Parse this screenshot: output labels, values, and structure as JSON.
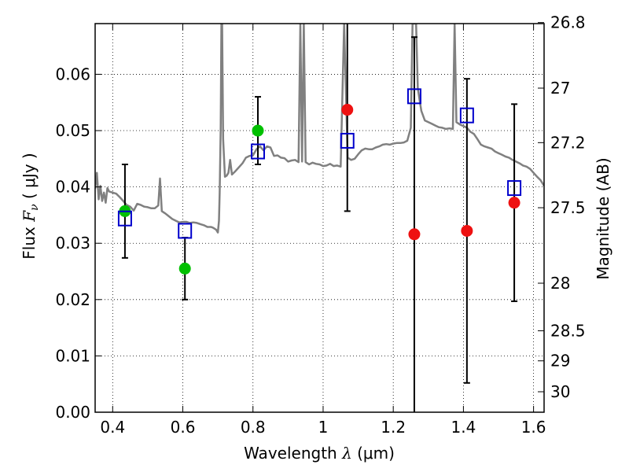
{
  "chart_data": {
    "type": "scatter",
    "xlabel": "Wavelength  λ (μm)",
    "xlabel_parts": {
      "main": "Wavelength  ",
      "symbol": "λ",
      "unit": " (μm)"
    },
    "ylabel": "Flux  Fν  ( μJy )",
    "ylabel_parts": {
      "main": "Flux  ",
      "symbol": "F",
      "sub": "ν",
      "unit": "  ( μJy )"
    },
    "y2label": "Magnitude (AB)",
    "xlim": [
      0.35,
      1.63
    ],
    "ylim": [
      0.0,
      0.069
    ],
    "x_ticks": [
      0.4,
      0.6,
      0.8,
      1.0,
      1.2,
      1.4,
      1.6
    ],
    "x_tick_labels": [
      "0.4",
      "0.6",
      "0.8",
      "1",
      "1.2",
      "1.4",
      "1.6"
    ],
    "y_ticks": [
      0.0,
      0.01,
      0.02,
      0.03,
      0.04,
      0.05,
      0.06
    ],
    "y_tick_labels": [
      "0.00",
      "0.01",
      "0.02",
      "0.03",
      "0.04",
      "0.05",
      "0.06"
    ],
    "y2_ticks": [
      26.8,
      27,
      27.2,
      27.5,
      28,
      28.5,
      29,
      30
    ],
    "y2_tick_labels": [
      "26.8",
      "27",
      "27.2",
      "27.5",
      "28",
      "28.5",
      "29",
      "30"
    ],
    "grid": true,
    "colors": {
      "sed": "#808080",
      "green": "#00c000",
      "red": "#ee1111",
      "model": "#0000cc",
      "error": "#000000"
    },
    "sed_model": {
      "x": [
        0.35,
        0.355,
        0.36,
        0.365,
        0.37,
        0.375,
        0.38,
        0.385,
        0.39,
        0.4,
        0.41,
        0.42,
        0.43,
        0.44,
        0.45,
        0.46,
        0.47,
        0.48,
        0.49,
        0.5,
        0.51,
        0.52,
        0.53,
        0.535,
        0.54,
        0.55,
        0.56,
        0.57,
        0.58,
        0.59,
        0.6,
        0.61,
        0.62,
        0.63,
        0.64,
        0.65,
        0.66,
        0.67,
        0.68,
        0.685,
        0.69,
        0.695,
        0.7,
        0.703,
        0.705,
        0.708,
        0.71,
        0.712,
        0.715,
        0.72,
        0.725,
        0.73,
        0.735,
        0.74,
        0.75,
        0.76,
        0.77,
        0.78,
        0.79,
        0.8,
        0.81,
        0.82,
        0.83,
        0.84,
        0.85,
        0.86,
        0.87,
        0.88,
        0.89,
        0.9,
        0.91,
        0.92,
        0.93,
        0.935,
        0.94,
        0.945,
        0.95,
        0.96,
        0.97,
        0.98,
        0.99,
        1.0,
        1.01,
        1.02,
        1.03,
        1.04,
        1.05,
        1.06,
        1.07,
        1.08,
        1.09,
        1.1,
        1.11,
        1.12,
        1.13,
        1.14,
        1.15,
        1.16,
        1.17,
        1.18,
        1.19,
        1.2,
        1.21,
        1.22,
        1.23,
        1.24,
        1.25,
        1.255,
        1.26,
        1.265,
        1.27,
        1.275,
        1.28,
        1.29,
        1.3,
        1.31,
        1.32,
        1.33,
        1.34,
        1.35,
        1.36,
        1.37,
        1.375,
        1.38,
        1.39,
        1.4,
        1.41,
        1.42,
        1.43,
        1.44,
        1.45,
        1.46,
        1.47,
        1.48,
        1.49,
        1.5,
        1.51,
        1.52,
        1.53,
        1.54,
        1.55,
        1.56,
        1.57,
        1.58,
        1.59,
        1.6,
        1.61,
        1.62,
        1.63
      ],
      "y": [
        0.0397,
        0.0425,
        0.0378,
        0.0402,
        0.0375,
        0.039,
        0.0372,
        0.0398,
        0.0392,
        0.039,
        0.0388,
        0.0382,
        0.0375,
        0.0368,
        0.0365,
        0.0358,
        0.037,
        0.0368,
        0.0365,
        0.0364,
        0.0362,
        0.0362,
        0.0367,
        0.0415,
        0.0357,
        0.0353,
        0.0348,
        0.0343,
        0.034,
        0.0337,
        0.0338,
        0.0338,
        0.0336,
        0.0337,
        0.0336,
        0.0334,
        0.0332,
        0.0329,
        0.0329,
        0.0328,
        0.0326,
        0.0324,
        0.0319,
        0.034,
        0.039,
        0.0505,
        0.069,
        0.069,
        0.0485,
        0.0418,
        0.042,
        0.0425,
        0.0448,
        0.0422,
        0.0428,
        0.0435,
        0.0442,
        0.0452,
        0.0455,
        0.0456,
        0.0467,
        0.0472,
        0.0465,
        0.0472,
        0.047,
        0.0455,
        0.0456,
        0.0452,
        0.0451,
        0.0445,
        0.0447,
        0.0448,
        0.0444,
        0.069,
        0.0445,
        0.069,
        0.0444,
        0.044,
        0.0443,
        0.0441,
        0.044,
        0.0437,
        0.0438,
        0.0441,
        0.0437,
        0.0438,
        0.0436,
        0.069,
        0.0452,
        0.0448,
        0.045,
        0.0458,
        0.0465,
        0.0468,
        0.0467,
        0.0467,
        0.047,
        0.0472,
        0.0475,
        0.0476,
        0.0475,
        0.0477,
        0.0478,
        0.0478,
        0.0479,
        0.0482,
        0.0505,
        0.069,
        0.069,
        0.069,
        0.0575,
        0.0555,
        0.0535,
        0.0518,
        0.0515,
        0.0512,
        0.0509,
        0.0506,
        0.0505,
        0.0503,
        0.0504,
        0.0503,
        0.069,
        0.0515,
        0.0511,
        0.0508,
        0.0505,
        0.0498,
        0.0494,
        0.0485,
        0.0475,
        0.0472,
        0.047,
        0.0468,
        0.0463,
        0.046,
        0.0457,
        0.0454,
        0.0452,
        0.0448,
        0.0445,
        0.0442,
        0.0438,
        0.0436,
        0.0432,
        0.0425,
        0.0418,
        0.0412,
        0.0402
      ]
    },
    "series": [
      {
        "marker": "circle",
        "color": "green",
        "points": [
          {
            "x": 0.435,
            "y": 0.0357,
            "err_low": 0.0083,
            "err_high": 0.0083
          },
          {
            "x": 0.606,
            "y": 0.0255,
            "err_low": 0.0055,
            "err_high": 0.0055
          },
          {
            "x": 0.814,
            "y": 0.05,
            "err_low": 0.006,
            "err_high": 0.006
          }
        ]
      },
      {
        "marker": "circle",
        "color": "red",
        "points": [
          {
            "x": 1.069,
            "y": 0.0537,
            "err_low": 0.018,
            "err_high": 0.018
          },
          {
            "x": 1.26,
            "y": 0.0316,
            "err_low": 0.035,
            "err_high": 0.035
          },
          {
            "x": 1.41,
            "y": 0.0322,
            "err_low": 0.027,
            "err_high": 0.027
          },
          {
            "x": 1.545,
            "y": 0.0372,
            "err_low": 0.0175,
            "err_high": 0.0175
          }
        ]
      },
      {
        "marker": "square-open",
        "color": "model",
        "points": [
          {
            "x": 0.435,
            "y": 0.0344
          },
          {
            "x": 0.606,
            "y": 0.0322
          },
          {
            "x": 0.814,
            "y": 0.0463
          },
          {
            "x": 1.069,
            "y": 0.0482
          },
          {
            "x": 1.26,
            "y": 0.0561
          },
          {
            "x": 1.41,
            "y": 0.0527
          },
          {
            "x": 1.545,
            "y": 0.0398
          }
        ]
      }
    ]
  }
}
